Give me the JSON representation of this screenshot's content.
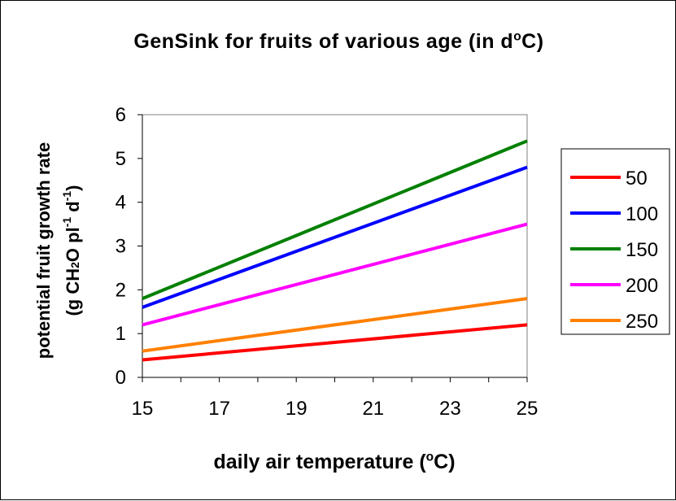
{
  "chart_data": {
    "type": "line",
    "title": {
      "main": "GenSink for fruits of various age (in d",
      "sup": "o",
      "tail": "C)"
    },
    "xlabel": {
      "main": "daily air temperature (",
      "sup": "o",
      "tail": "C)"
    },
    "ylabel": {
      "line1": "potential fruit growth rate",
      "line2": {
        "a": "(g CH",
        "sub": "2",
        "b": "O pl",
        "sup1": "-1",
        "c": " d",
        "sup2": "-1",
        "d": ")"
      }
    },
    "xlim": [
      15,
      25
    ],
    "ylim": [
      0,
      6
    ],
    "xticks": [
      15,
      17,
      19,
      21,
      23,
      25
    ],
    "yticks": [
      0,
      1,
      2,
      3,
      4,
      5,
      6
    ],
    "grid": false,
    "legend_position": "right",
    "x": [
      15,
      25
    ],
    "series": [
      {
        "name": "50",
        "color": "#ff0000",
        "values": [
          0.4,
          1.2
        ]
      },
      {
        "name": "100",
        "color": "#0000ff",
        "values": [
          1.6,
          4.8
        ]
      },
      {
        "name": "150",
        "color": "#008000",
        "values": [
          1.8,
          5.4
        ]
      },
      {
        "name": "200",
        "color": "#ff00ff",
        "values": [
          1.2,
          3.5
        ]
      },
      {
        "name": "250",
        "color": "#ff8000",
        "values": [
          0.6,
          1.8
        ]
      }
    ]
  }
}
